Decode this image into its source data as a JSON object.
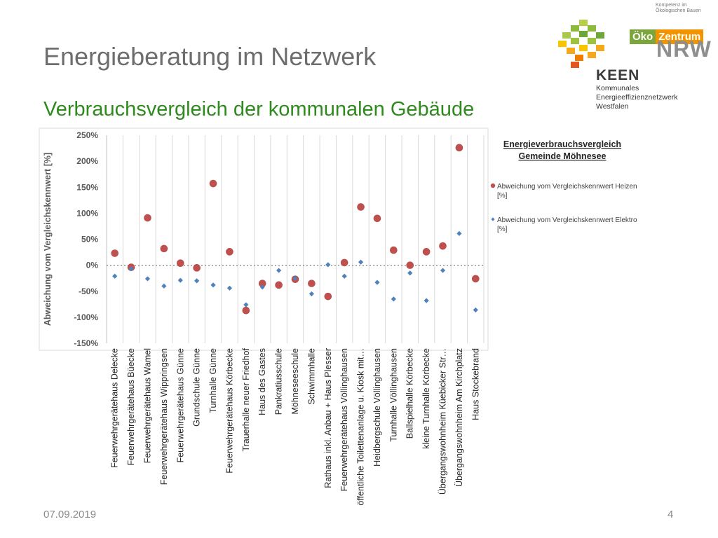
{
  "slide": {
    "title": "Energieberatung im Netzwerk",
    "subtitle": "Verbrauchsvergleich der kommunalen Gebäude",
    "date": "07.09.2019",
    "page": "4"
  },
  "logos": {
    "kompetenz_line1": "Kompetenz im",
    "kompetenz_line2": "Ökologischen Bauen",
    "oeko": "Öko",
    "zentrum": "Zentrum",
    "nrw": "NRW",
    "keen": "KEEN",
    "keen_line1": "Kommunales",
    "keen_line2": "Energieeffizienznetzwerk",
    "keen_line3": "Westfalen"
  },
  "colors": {
    "heizen": "#c0504d",
    "elektro": "#4f81bd",
    "title": "#6d6d6d",
    "subtitle": "#2f8a1e"
  },
  "chart_data": {
    "type": "scatter",
    "title_line1": "Energieverbrauchsvergleich",
    "title_line2": "Gemeinde Möhnesee",
    "ylabel": "Abweichung vom Vergleichskennwert [%]",
    "ylim": [
      -150,
      250
    ],
    "yticks": [
      "250%",
      "200%",
      "150%",
      "100%",
      "50%",
      "0%",
      "-50%",
      "-100%",
      "-150%"
    ],
    "grid": "vertical",
    "legend_position": "right",
    "categories": [
      "Feuerwehrgerätehaus Delecke",
      "Feuerwehrgerätehaus Büecke",
      "Feuerwehrgerätehaus Wamel",
      "Feuerwehrgerätehaus Wippringsen",
      "Feuerwehrgerätehaus Günne",
      "Grundschule Günne",
      "Turnhalle Günne",
      "Feuerwehrgerätehaus Körbecke",
      "Trauerhalle neuer Friedhof",
      "Haus des Gastes",
      "Pankratiusschule",
      "Möhneseeschule",
      "Schwimmhalle",
      "Rathaus inkl. Anbau + Haus Plesser",
      "Feuerwehrgerätehaus Völlinghausen",
      "öffentliche Toilettenanlage u. Kiosk mit…",
      "Heidbergschule Völlinghausen",
      "Turnhalle Völlinghausen",
      "Ballspielhalle Körbecke",
      "kleine Turnhalle Körbecke",
      "Übergangswohnheim Küebicker Str…",
      "Übergangswohnheim Am Kirchplatz",
      "Haus Stockebrand"
    ],
    "series": [
      {
        "name": "Abweichung vom Vergleichskennwert Heizen",
        "name_line1": "Abweichung vom Vergleichskennwert Heizen",
        "name_line2": "[%]",
        "marker": "circle",
        "values": [
          23,
          -4,
          91,
          32,
          4,
          -5,
          157,
          26,
          -87,
          -35,
          -38,
          -27,
          -35,
          -60,
          5,
          112,
          90,
          29,
          0,
          26,
          37,
          226,
          -26
        ]
      },
      {
        "name": "Abweichung vom Vergleichskennwert Elektro",
        "name_line1": "Abweichung vom Vergleichskennwert Elektro",
        "name_line2": "[%]",
        "marker": "diamond",
        "values": [
          -21,
          -7,
          -26,
          -40,
          -29,
          -30,
          -38,
          -44,
          -76,
          -42,
          -10,
          -25,
          -55,
          1,
          -21,
          6,
          -33,
          -65,
          -15,
          -68,
          -10,
          61,
          -86
        ]
      }
    ]
  }
}
